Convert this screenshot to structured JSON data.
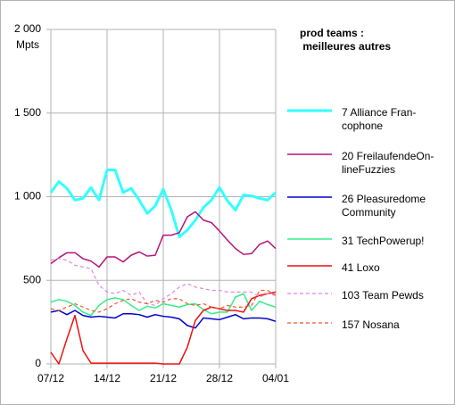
{
  "chart_data": {
    "type": "line",
    "y_label": "Mpts",
    "legend_title": "prod teams :\n meilleures autres",
    "categories": [
      "07/12",
      null,
      null,
      null,
      null,
      null,
      null,
      "14/12",
      null,
      null,
      null,
      null,
      null,
      null,
      "21/12",
      null,
      null,
      null,
      null,
      null,
      null,
      "28/12",
      null,
      null,
      null,
      null,
      null,
      null,
      "04/01"
    ],
    "ylim": [
      0,
      2000
    ],
    "yticks": [
      0,
      500,
      {
        "value": 1000,
        "label": "1 000"
      },
      {
        "value": 1500,
        "label": "1 500"
      },
      {
        "value": 2000,
        "label": "2 000"
      }
    ],
    "grid": true,
    "legend": "right",
    "series": [
      {
        "name": "7 Alliance Fran-\ncophone",
        "color": "#33ffff",
        "width": 3,
        "dashed": false,
        "values": [
          1025,
          1090,
          1050,
          980,
          990,
          1055,
          980,
          1160,
          1160,
          1025,
          1050,
          980,
          900,
          945,
          1045,
          920,
          760,
          800,
          860,
          935,
          980,
          1055,
          975,
          920,
          1010,
          1005,
          990,
          980,
          1025
        ]
      },
      {
        "name": "20 FreilaufendeOn-\nlineFuzzies",
        "color": "#b5137a",
        "width": 1.5,
        "dashed": false,
        "values": [
          600,
          635,
          665,
          665,
          630,
          615,
          580,
          640,
          640,
          610,
          650,
          670,
          645,
          650,
          770,
          770,
          785,
          880,
          910,
          860,
          845,
          795,
          740,
          690,
          655,
          660,
          715,
          735,
          690
        ]
      },
      {
        "name": "26 Pleasuredome\nCommunity",
        "color": "#0000cc",
        "width": 1.5,
        "dashed": false,
        "values": [
          310,
          320,
          295,
          320,
          290,
          280,
          285,
          280,
          275,
          300,
          300,
          295,
          280,
          295,
          285,
          280,
          270,
          230,
          215,
          275,
          270,
          265,
          280,
          295,
          270,
          275,
          275,
          270,
          255
        ]
      },
      {
        "name": "31 TechPowerup!",
        "color": "#33ee88",
        "width": 1.5,
        "dashed": false,
        "values": [
          370,
          385,
          375,
          350,
          310,
          290,
          350,
          385,
          395,
          385,
          350,
          320,
          345,
          335,
          360,
          350,
          340,
          355,
          360,
          325,
          300,
          310,
          310,
          400,
          420,
          320,
          375,
          355,
          340
        ]
      },
      {
        "name": "41 Loxo",
        "color": "#ee1111",
        "width": 1.5,
        "dashed": false,
        "values": [
          70,
          0,
          150,
          290,
          80,
          5,
          5,
          5,
          5,
          5,
          5,
          5,
          5,
          5,
          0,
          0,
          0,
          100,
          260,
          320,
          340,
          330,
          320,
          320,
          310,
          390,
          410,
          420,
          430
        ]
      },
      {
        "name": "103 Team Pewds",
        "color": "#dd88dd",
        "width": 1.2,
        "dashed": true,
        "values": [
          620,
          630,
          620,
          590,
          580,
          570,
          470,
          430,
          420,
          440,
          410,
          430,
          360,
          350,
          390,
          420,
          460,
          480,
          460,
          450,
          440,
          440,
          430,
          430,
          430,
          430,
          400,
          420,
          410
        ]
      },
      {
        "name": "157 Nosana",
        "color": "#ee5533",
        "width": 1.2,
        "dashed": true,
        "values": [
          330,
          320,
          340,
          360,
          340,
          320,
          310,
          330,
          360,
          380,
          390,
          370,
          360,
          380,
          370,
          390,
          390,
          360,
          350,
          360,
          340,
          330,
          350,
          340,
          340,
          350,
          440,
          440,
          410
        ]
      }
    ]
  }
}
